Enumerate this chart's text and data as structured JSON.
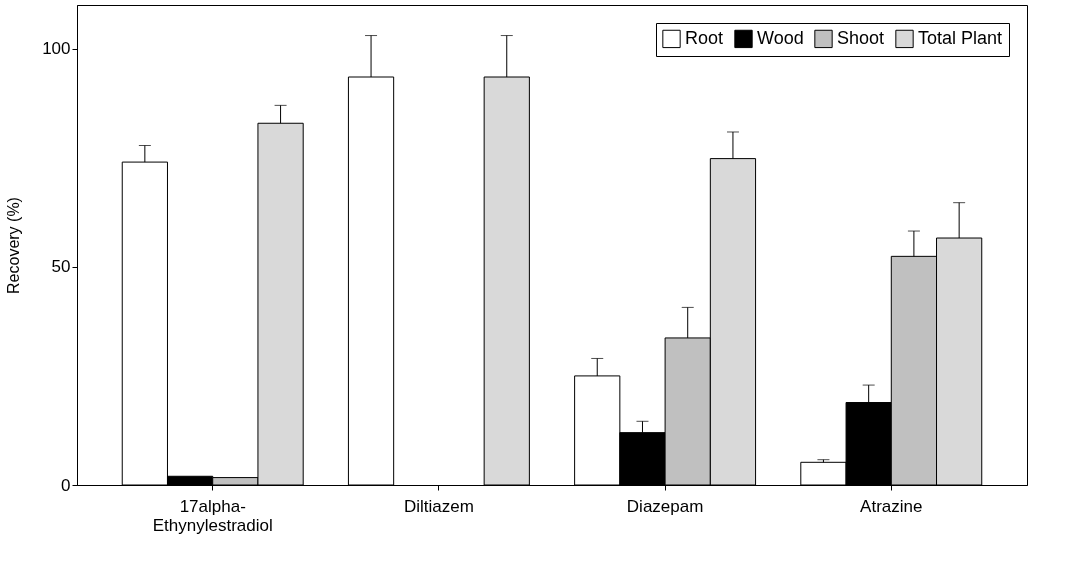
{
  "chart_data": {
    "type": "bar",
    "ylabel": "Recovery (%)",
    "categories": [
      "17alpha-Ethynylestradiol",
      "Diltiazem",
      "Diazepam",
      "Atrazine"
    ],
    "series": [
      {
        "name": "Root",
        "color": "#ffffff",
        "values": [
          74,
          93.5,
          25,
          5.2
        ],
        "errors": [
          3.8,
          9.5,
          4,
          0.6
        ]
      },
      {
        "name": "Wood",
        "color": "#000000",
        "values": [
          2,
          null,
          12,
          18.9
        ],
        "errors": [
          null,
          null,
          2.6,
          4
        ]
      },
      {
        "name": "Shoot",
        "color": "#c0c0c0",
        "values": [
          1.7,
          null,
          33.7,
          52.4
        ],
        "errors": [
          null,
          null,
          7,
          5.8
        ]
      },
      {
        "name": "Total Plant",
        "color": "#d9d9d9",
        "values": [
          82.9,
          93.5,
          74.8,
          56.6
        ],
        "errors": [
          4.1,
          9.5,
          6.1,
          8.1
        ]
      }
    ],
    "ylim": [
      0,
      110
    ],
    "yticks": [
      0,
      50,
      100
    ],
    "grid": false,
    "legend": "top right"
  }
}
